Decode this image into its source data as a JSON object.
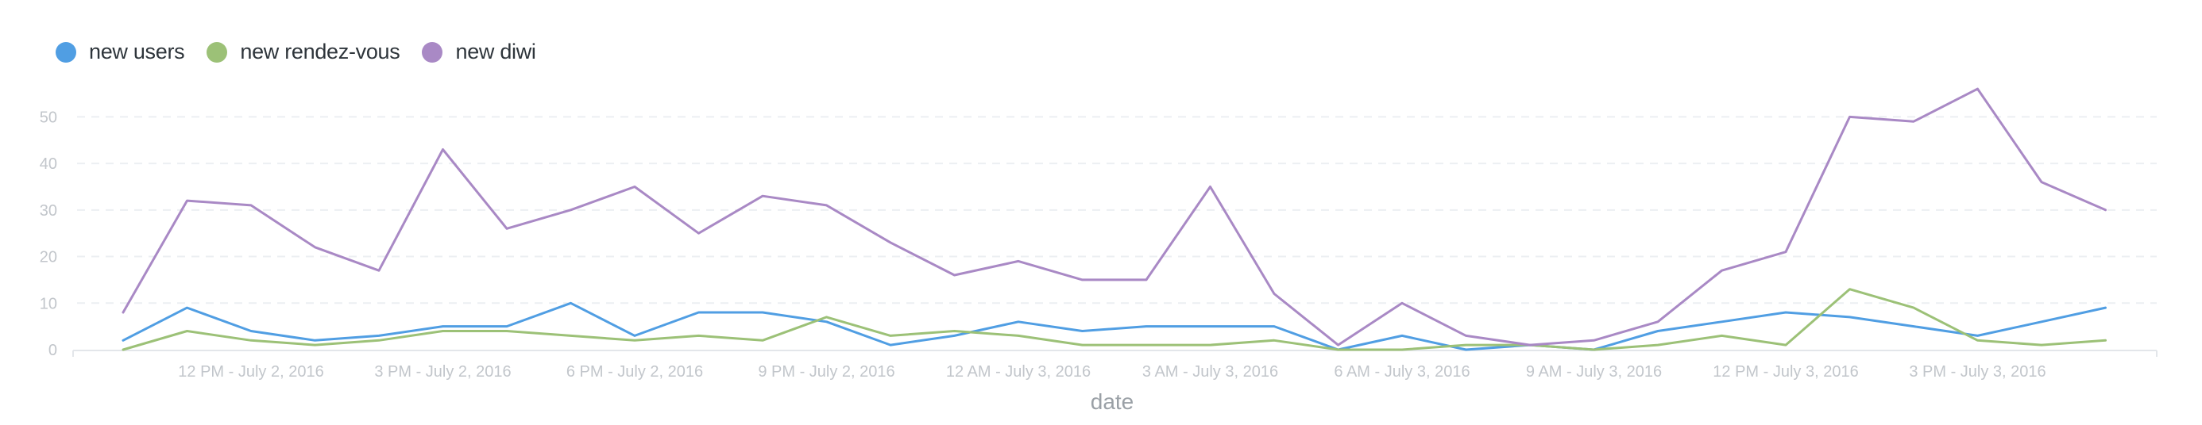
{
  "legend": [
    {
      "label": "new users",
      "color": "#509ee3"
    },
    {
      "label": "new rendez-vous",
      "color": "#9cc177"
    },
    {
      "label": "new diwi",
      "color": "#a989c5"
    }
  ],
  "chart_data": {
    "type": "line",
    "xlabel": "date",
    "ylabel": "",
    "ylim": [
      0,
      55
    ],
    "yticks": [
      0,
      10,
      20,
      30,
      40,
      50
    ],
    "grid": true,
    "legend_position": "top-left",
    "x_tick_labels": [
      "12 PM - July 2, 2016",
      "3 PM - July 2, 2016",
      "6 PM - July 2, 2016",
      "9 PM - July 2, 2016",
      "12 AM - July 3, 2016",
      "3 AM - July 3, 2016",
      "6 AM - July 3, 2016",
      "9 AM - July 3, 2016",
      "12 PM - July 3, 2016",
      "3 PM - July 3, 2016"
    ],
    "x": [
      "10 AM - July 2, 2016",
      "11 AM - July 2, 2016",
      "12 PM - July 2, 2016",
      "1 PM - July 2, 2016",
      "2 PM - July 2, 2016",
      "3 PM - July 2, 2016",
      "4 PM - July 2, 2016",
      "5 PM - July 2, 2016",
      "6 PM - July 2, 2016",
      "7 PM - July 2, 2016",
      "8 PM - July 2, 2016",
      "9 PM - July 2, 2016",
      "10 PM - July 2, 2016",
      "11 PM - July 2, 2016",
      "12 AM - July 3, 2016",
      "1 AM - July 3, 2016",
      "2 AM - July 3, 2016",
      "3 AM - July 3, 2016",
      "4 AM - July 3, 2016",
      "5 AM - July 3, 2016",
      "6 AM - July 3, 2016",
      "7 AM - July 3, 2016",
      "8 AM - July 3, 2016",
      "9 AM - July 3, 2016",
      "10 AM - July 3, 2016",
      "11 AM - July 3, 2016",
      "12 PM - July 3, 2016",
      "1 PM - July 3, 2016",
      "2 PM - July 3, 2016",
      "3 PM - July 3, 2016",
      "4 PM - July 3, 2016",
      "5 PM - July 3, 2016"
    ],
    "series": [
      {
        "name": "new users",
        "color": "#509ee3",
        "values": [
          2,
          9,
          4,
          2,
          3,
          5,
          5,
          10,
          3,
          8,
          8,
          6,
          1,
          3,
          6,
          4,
          5,
          5,
          5,
          0,
          3,
          0,
          1,
          0,
          4,
          6,
          8,
          7,
          5,
          3,
          6,
          9
        ]
      },
      {
        "name": "new rendez-vous",
        "color": "#9cc177",
        "values": [
          0,
          4,
          2,
          1,
          2,
          4,
          4,
          3,
          2,
          3,
          2,
          7,
          3,
          4,
          3,
          1,
          1,
          1,
          2,
          0,
          0,
          1,
          1,
          0,
          1,
          3,
          1,
          13,
          9,
          2,
          1,
          2
        ]
      },
      {
        "name": "new diwi",
        "color": "#a989c5",
        "values": [
          8,
          32,
          31,
          22,
          17,
          43,
          26,
          30,
          35,
          25,
          33,
          31,
          23,
          16,
          19,
          15,
          15,
          35,
          12,
          1,
          10,
          3,
          1,
          2,
          6,
          17,
          21,
          50,
          49,
          56,
          36,
          30
        ]
      }
    ]
  }
}
